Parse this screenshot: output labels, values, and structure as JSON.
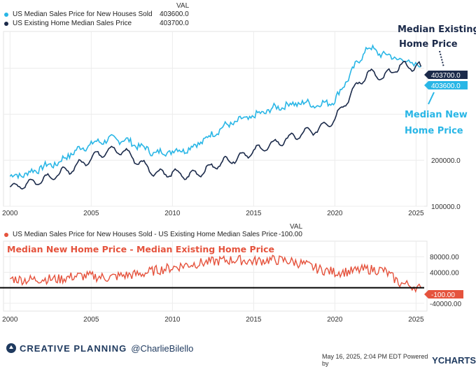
{
  "chart_data": [
    {
      "type": "line",
      "legend_header": "VAL",
      "series": [
        {
          "name": "US Median Sales Price for New Houses Sold",
          "last_value": "403600.0",
          "color": "#29b6e6",
          "x": [
            2000,
            2001,
            2002,
            2003,
            2004,
            2005,
            2006,
            2007,
            2008,
            2009,
            2010,
            2011,
            2012,
            2013,
            2014,
            2015,
            2016,
            2017,
            2018,
            2019,
            2020,
            2021,
            2022,
            2023,
            2024,
            2025.3
          ],
          "values": [
            165000,
            170000,
            185000,
            195000,
            220000,
            235000,
            245000,
            245000,
            230000,
            215000,
            220000,
            225000,
            245000,
            270000,
            285000,
            295000,
            310000,
            320000,
            325000,
            320000,
            330000,
            390000,
            445000,
            430000,
            420000,
            403600
          ]
        },
        {
          "name": "US Existing Home Median Sales Price",
          "last_value": "403700.0",
          "color": "#1b2a4a",
          "x": [
            2000,
            2001,
            2002,
            2003,
            2004,
            2005,
            2006,
            2007,
            2008,
            2009,
            2010,
            2011,
            2012,
            2013,
            2014,
            2015,
            2016,
            2017,
            2018,
            2019,
            2020,
            2021,
            2022,
            2023,
            2024,
            2025.3
          ],
          "values": [
            140000,
            148000,
            158000,
            170000,
            185000,
            205000,
            222000,
            220000,
            195000,
            172000,
            172000,
            166000,
            178000,
            195000,
            205000,
            220000,
            232000,
            245000,
            258000,
            268000,
            290000,
            345000,
            390000,
            380000,
            405000,
            403700
          ]
        }
      ],
      "y_ticks": [
        "200000.0",
        "100000.0"
      ],
      "x_ticks": [
        "2000",
        "2005",
        "2010",
        "2015",
        "2020",
        "2025"
      ],
      "xlim": [
        1999.6,
        2025.5
      ],
      "ylim": [
        100000,
        480000
      ],
      "annotations": {
        "existing": [
          "Median Existing",
          "Home Price"
        ],
        "new": [
          "Median New",
          "Home Price"
        ]
      },
      "value_tags": {
        "existing": "403700.0",
        "new": "403600.0"
      }
    },
    {
      "type": "line",
      "legend_header": "VAL",
      "series": [
        {
          "name": "US Median Sales Price for New Houses Sold - US Existing Home Median Sales Price",
          "last_value": "-100.00",
          "color": "#e5533d",
          "x": [
            2000,
            2001,
            2002,
            2003,
            2004,
            2005,
            2006,
            2007,
            2008,
            2009,
            2010,
            2011,
            2012,
            2013,
            2014,
            2015,
            2016,
            2017,
            2018,
            2019,
            2020,
            2021,
            2022,
            2023,
            2024,
            2025.3
          ],
          "values": [
            24000,
            20000,
            23000,
            22000,
            30000,
            30000,
            26000,
            32000,
            35000,
            45000,
            52000,
            60000,
            65000,
            70000,
            72000,
            68000,
            72000,
            70000,
            62000,
            48000,
            40000,
            42000,
            48000,
            45000,
            12000,
            -100
          ]
        }
      ],
      "title": "Median New Home Price - Median Existing Home Price",
      "y_ticks": [
        "80000.00",
        "40000.00",
        "-40000.00"
      ],
      "x_ticks": [
        "2000",
        "2005",
        "2010",
        "2015",
        "2020",
        "2025"
      ],
      "xlim": [
        1999.6,
        2025.5
      ],
      "ylim": [
        -60000,
        120000
      ],
      "value_tag": "-100.00"
    }
  ],
  "footer": {
    "brand": "CREATIVE PLANNING",
    "handle": "@CharlieBilello",
    "timestamp": "May 16, 2025, 2:04 PM EDT Powered by",
    "ycharts": "YCHARTS"
  },
  "colors": {
    "new": "#29b6e6",
    "existing": "#1b2a4a",
    "spread": "#e5533d"
  }
}
